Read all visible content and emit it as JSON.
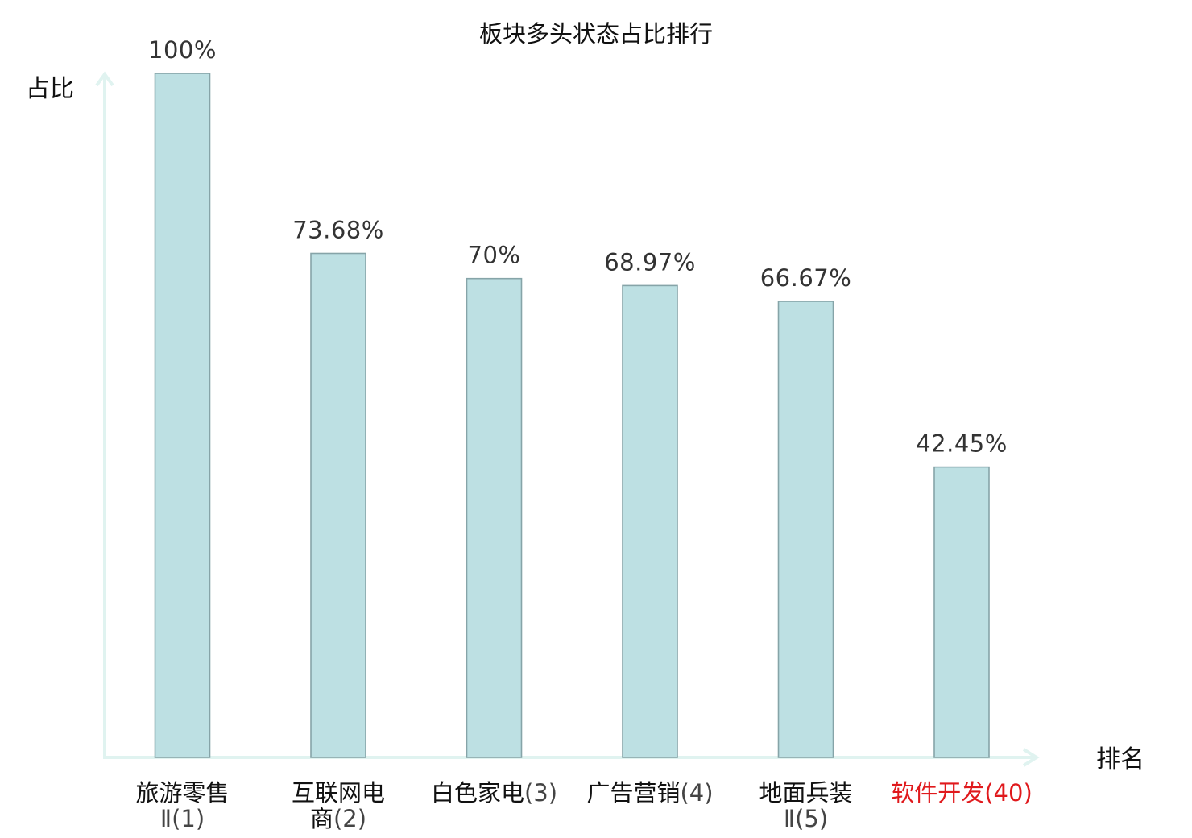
{
  "chart_data": {
    "type": "bar",
    "title": "板块多头状态占比排行",
    "ylabel": "占比",
    "xlabel": "排名",
    "ylim": [
      0,
      100
    ],
    "grid": false,
    "legend": "none",
    "categories": [
      {
        "lines": [
          {
            "name": "旅游零售",
            "rank": ""
          },
          {
            "name": "",
            "rank": "Ⅱ(1)"
          }
        ],
        "highlight": false
      },
      {
        "lines": [
          {
            "name": "互联网电",
            "rank": ""
          },
          {
            "name": "商",
            "rank": "(2)"
          }
        ],
        "highlight": false
      },
      {
        "lines": [
          {
            "name": "白色家电",
            "rank": "(3)"
          }
        ],
        "highlight": false
      },
      {
        "lines": [
          {
            "name": "广告营销",
            "rank": "(4)"
          }
        ],
        "highlight": false
      },
      {
        "lines": [
          {
            "name": "地面兵装",
            "rank": ""
          },
          {
            "name": "",
            "rank": "Ⅱ(5)"
          }
        ],
        "highlight": false
      },
      {
        "lines": [
          {
            "name": "软件开发",
            "rank": "(40)"
          }
        ],
        "highlight": true
      }
    ],
    "values": [
      100,
      73.68,
      70,
      68.97,
      66.67,
      42.45
    ],
    "value_labels": [
      "100%",
      "73.68%",
      "70%",
      "68.97%",
      "66.67%",
      "42.45%"
    ],
    "colors": {
      "bar_fill": "#bde0e3",
      "bar_stroke": "#86a4a8",
      "axis": "#e0f3f0",
      "text": "#111111",
      "rank_text": "#444444",
      "highlight": "#e0191c"
    }
  }
}
